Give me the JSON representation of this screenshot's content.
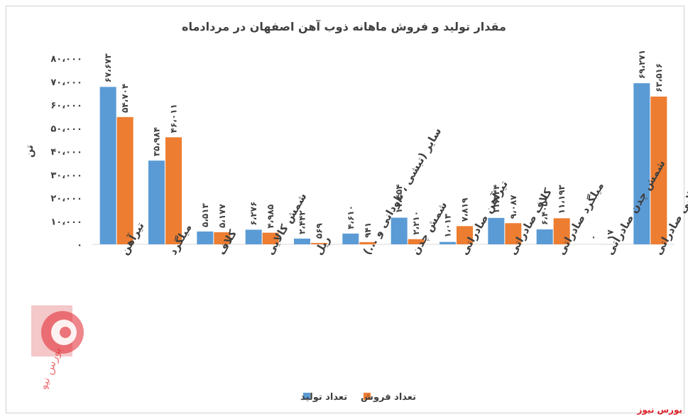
{
  "source_mark": "بورس نیوز",
  "logo_text": "بورس نیوز",
  "colors": {
    "production": "#5b9bd5",
    "sales": "#ed7d31",
    "logo": "#e0232b",
    "axis_text": "#404040"
  },
  "chart_data": {
    "type": "bar",
    "title": "مقدار تولید و فروش ماهانه ذوب آهن اصفهان در مردادماه",
    "ylabel": "تن",
    "ylim": [
      0,
      80000
    ],
    "yticks": [
      0,
      10000,
      20000,
      30000,
      40000,
      50000,
      60000,
      70000,
      80000
    ],
    "ytick_labels": [
      "۰",
      "۱۰،۰۰۰",
      "۲۰،۰۰۰",
      "۳۰،۰۰۰",
      "۴۰،۰۰۰",
      "۵۰،۰۰۰",
      "۶۰،۰۰۰",
      "۷۰،۰۰۰",
      "۸۰،۰۰۰"
    ],
    "legend_position": "bottom",
    "grid": false,
    "categories": [
      "تیرآهن",
      "میلگرد",
      "کلاف",
      "شمش کالایی",
      "ریل",
      "سایر (تبشی ، ناودانی و ...)",
      "شمش چدن",
      "تیرآهن صادراتی",
      "کلاف صادراتی",
      "میلگرد صادراتی",
      "شمش چدن صادراتی",
      "شمش کالایی صادراتی"
    ],
    "series": [
      {
        "name": "تعداد تولید",
        "values": [
          67673,
          35984,
          5513,
          6276,
          2442,
          4610,
          11454,
          1013,
          11344,
          6405,
          0,
          69271
        ],
        "labels": [
          "۶۷،۶۷۳",
          "۳۵،۹۸۴",
          "۵،۵۱۳",
          "۶،۲۷۶",
          "۲،۴۴۲",
          "۴،۶۱۰",
          "۱۱،۴۵۴",
          "۱،۰۱۳",
          "۱۱،۳۴۴",
          "۶،۴۰۵",
          "۰",
          "۶۹،۲۷۱"
        ]
      },
      {
        "name": "تعداد فروش",
        "values": [
          54704,
          46011,
          5177,
          4985,
          569,
          941,
          2210,
          7819,
          9087,
          11193,
          17,
          63516
        ],
        "labels": [
          "۵۴،۷۰۴",
          "۴۶،۰۱۱",
          "۵،۱۷۷",
          "۴،۹۸۵",
          "۵۶۹",
          "۹۴۱",
          "۲،۲۱۰",
          "۷،۸۱۹",
          "۹،۰۸۷",
          "۱۱،۱۹۳",
          "۱۷",
          "۶۳،۵۱۶"
        ]
      }
    ]
  }
}
